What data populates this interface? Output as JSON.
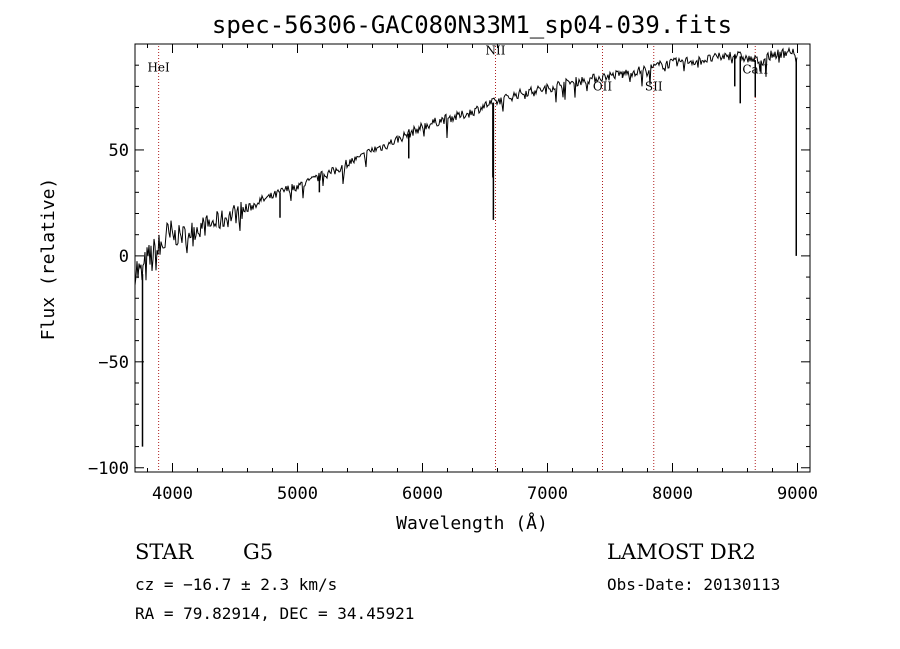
{
  "chart_data": {
    "type": "line",
    "title": "spec-56306-GAC080N33M1_sp04-039.fits",
    "xlabel": "Wavelength (Å)",
    "ylabel": "Flux (relative)",
    "xlim": [
      3700,
      9100
    ],
    "ylim": [
      -102,
      100
    ],
    "xticks": [
      4000,
      5000,
      6000,
      7000,
      8000,
      9000
    ],
    "yticks": [
      -100,
      -50,
      0,
      50
    ],
    "grid": false,
    "series": [
      {
        "color": "#000000",
        "x": [
          3700,
          3750,
          3800,
          3850,
          3900,
          3950,
          4000,
          4100,
          4200,
          4300,
          4400,
          4500,
          4600,
          4700,
          4800,
          4900,
          5000,
          5100,
          5200,
          5300,
          5400,
          5500,
          5600,
          5700,
          5800,
          5900,
          6000,
          6100,
          6200,
          6300,
          6400,
          6500,
          6600,
          6700,
          6800,
          6900,
          7000,
          7100,
          7200,
          7300,
          7400,
          7500,
          7600,
          7700,
          7800,
          7900,
          8000,
          8100,
          8200,
          8300,
          8400,
          8500,
          8600,
          8700,
          8800,
          8900,
          8950,
          9000
        ],
        "y": [
          -5,
          -10,
          -3,
          0,
          3,
          8,
          9,
          10,
          13,
          15,
          17,
          20,
          22,
          26,
          28,
          31,
          33,
          35,
          38,
          40,
          44,
          46,
          50,
          52,
          55,
          58,
          61,
          63,
          65,
          66,
          68,
          71,
          73,
          75,
          77,
          78,
          79,
          81,
          82,
          83,
          84,
          85,
          86,
          87,
          88,
          90,
          91,
          92,
          92,
          93,
          94,
          95,
          93,
          92,
          95,
          96,
          97,
          92
        ]
      }
    ],
    "absorption_features": [
      {
        "x": 3760,
        "depth": -90
      },
      {
        "x": 4860,
        "depth": 18
      },
      {
        "x": 5175,
        "depth": 30
      },
      {
        "x": 5890,
        "depth": 46
      },
      {
        "x": 6563,
        "depth": 37
      },
      {
        "x": 6567,
        "depth": 17
      },
      {
        "x": 7600,
        "depth": 84
      },
      {
        "x": 8498,
        "depth": 80
      },
      {
        "x": 8542,
        "depth": 72
      },
      {
        "x": 8662,
        "depth": 75
      },
      {
        "x": 8990,
        "depth": 0
      }
    ],
    "line_markers": [
      {
        "label": "HeI",
        "x": 3889,
        "label_y": 87
      },
      {
        "label": "NII",
        "x": 6584,
        "label_y": 95
      },
      {
        "label": "OII",
        "x": 7440,
        "label_y": 78
      },
      {
        "label": "SII",
        "x": 7850,
        "label_y": 78
      },
      {
        "label": "CaII",
        "x": 8662,
        "label_y": 86
      }
    ],
    "marker_color": "#b02020"
  },
  "info": {
    "object_class": "STAR",
    "subclass": "G5",
    "survey": "LAMOST DR2",
    "cz": "cz = −16.7 ± 2.3 km/s",
    "obs_date": "Obs-Date: 20130113",
    "coords": "RA =  79.82914, DEC =  34.45921"
  }
}
